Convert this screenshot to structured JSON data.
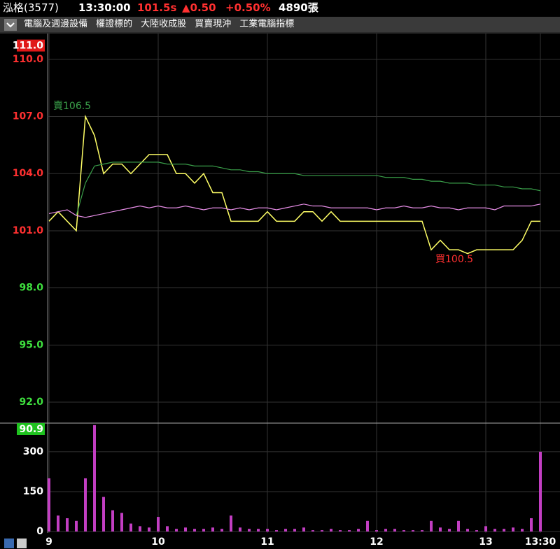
{
  "header": {
    "name": "泓格(3577)",
    "time": "13:30:00",
    "price": "101.5s",
    "change": "▲0.50",
    "percent": "+0.50%",
    "volume": "4890張"
  },
  "menu": [
    "電腦及週邊設備",
    "權證標的",
    "大陸收成股",
    "買賣現沖",
    "工業電腦指標"
  ],
  "chart_data": [
    {
      "type": "line",
      "categories": [
        "9",
        null,
        null,
        null,
        null,
        null,
        null,
        null,
        null,
        null,
        null,
        null,
        "10",
        null,
        null,
        null,
        null,
        null,
        null,
        null,
        null,
        null,
        null,
        null,
        "11",
        null,
        null,
        null,
        null,
        null,
        null,
        null,
        null,
        null,
        null,
        null,
        "12",
        null,
        null,
        null,
        null,
        null,
        null,
        null,
        null,
        null,
        null,
        null,
        "13",
        null,
        null,
        null,
        null,
        null,
        "13:30"
      ],
      "series": [
        {
          "name": "price",
          "color": "#ffff66",
          "values": [
            101.5,
            102.0,
            101.5,
            101.0,
            107.0,
            106.0,
            104.0,
            104.5,
            104.5,
            104.0,
            104.5,
            105.0,
            105.0,
            105.0,
            104.0,
            104.0,
            103.5,
            104.0,
            103.0,
            103.0,
            101.5,
            101.5,
            101.5,
            101.5,
            102.0,
            101.5,
            101.5,
            101.5,
            102.0,
            102.0,
            101.5,
            102.0,
            101.5,
            101.5,
            101.5,
            101.5,
            101.5,
            101.5,
            101.5,
            101.5,
            101.5,
            101.5,
            100.0,
            100.5,
            100.0,
            100.0,
            99.8,
            100.0,
            100.0,
            100.0,
            100.0,
            100.0,
            100.5,
            101.5,
            101.5
          ]
        },
        {
          "name": "average",
          "color": "#3aa04a",
          "values": [
            null,
            null,
            null,
            101.8,
            103.5,
            104.4,
            104.5,
            104.6,
            104.6,
            104.6,
            104.6,
            104.6,
            104.6,
            104.5,
            104.5,
            104.5,
            104.4,
            104.4,
            104.4,
            104.3,
            104.2,
            104.2,
            104.1,
            104.1,
            104.0,
            104.0,
            104.0,
            104.0,
            103.9,
            103.9,
            103.9,
            103.9,
            103.9,
            103.9,
            103.9,
            103.9,
            103.9,
            103.8,
            103.8,
            103.8,
            103.7,
            103.7,
            103.6,
            103.6,
            103.5,
            103.5,
            103.5,
            103.4,
            103.4,
            103.4,
            103.3,
            103.3,
            103.2,
            103.2,
            103.1
          ]
        },
        {
          "name": "index",
          "color": "#e88ee8",
          "values": [
            101.9,
            102.0,
            102.1,
            101.8,
            101.7,
            101.8,
            101.9,
            102.0,
            102.1,
            102.2,
            102.3,
            102.2,
            102.3,
            102.2,
            102.2,
            102.3,
            102.2,
            102.1,
            102.2,
            102.2,
            102.1,
            102.2,
            102.1,
            102.2,
            102.2,
            102.1,
            102.2,
            102.3,
            102.4,
            102.3,
            102.3,
            102.2,
            102.2,
            102.2,
            102.2,
            102.2,
            102.1,
            102.2,
            102.2,
            102.3,
            102.2,
            102.2,
            102.3,
            102.2,
            102.2,
            102.1,
            102.2,
            102.2,
            102.2,
            102.1,
            102.3,
            102.3,
            102.3,
            102.3,
            102.4
          ]
        }
      ],
      "annotations": [
        "賣106.5",
        "買100.5"
      ],
      "ylim": [
        90.9,
        111.0
      ],
      "yticks": [
        {
          "value": 90.9,
          "label": "90.9"
        },
        {
          "value": 92,
          "label": "92.0"
        },
        {
          "value": 95,
          "label": "95.0"
        },
        {
          "value": 98,
          "label": "98.0"
        },
        {
          "value": 101,
          "label": "101.0"
        },
        {
          "value": 104,
          "label": "104.0"
        },
        {
          "value": 107,
          "label": "107.0"
        },
        {
          "value": 110,
          "label": "110.0"
        },
        {
          "value": 111,
          "label": "111.0"
        }
      ],
      "ytick_colors": [
        "#1fc21f",
        "#3ee03e",
        "#3ee03e",
        "#3ee03e",
        "#ff3030",
        "#ff3030",
        "#ff3030",
        "#ff3030",
        "#e01818"
      ],
      "grid": true
    },
    {
      "type": "bar",
      "color": "#c23ec2",
      "values": [
        200,
        60,
        50,
        40,
        200,
        400,
        130,
        80,
        70,
        30,
        20,
        15,
        55,
        20,
        10,
        15,
        10,
        10,
        15,
        10,
        60,
        15,
        10,
        10,
        10,
        5,
        10,
        10,
        15,
        5,
        5,
        10,
        5,
        5,
        10,
        40,
        5,
        10,
        10,
        5,
        5,
        5,
        40,
        15,
        10,
        40,
        10,
        5,
        20,
        10,
        10,
        15,
        10,
        50,
        300
      ],
      "ylim": [
        0,
        405
      ],
      "yticks": [
        0,
        150,
        300
      ],
      "grid": true
    }
  ]
}
